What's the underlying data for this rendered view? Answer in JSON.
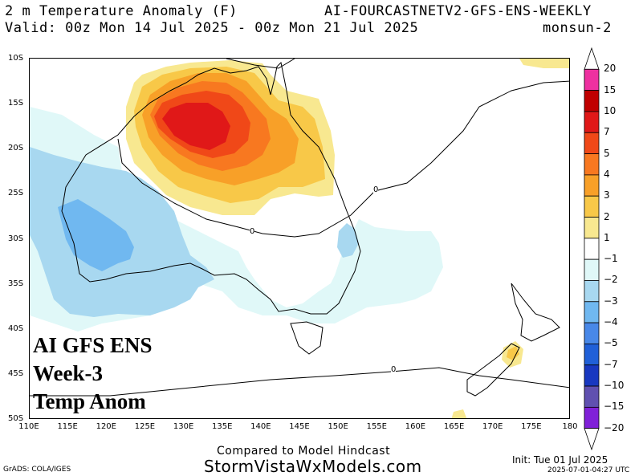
{
  "header": {
    "title_left": "2 m Temperature Anomaly (F)",
    "title_right": "AI-FOURCASTNETV2-GFS-ENS-WEEKLY",
    "valid": "Valid: 00z Mon 14 Jul 2025 - 00z Mon 21 Jul 2025",
    "run": "monsun-2"
  },
  "axes": {
    "lat_labels": [
      "10S",
      "15S",
      "20S",
      "25S",
      "30S",
      "35S",
      "40S",
      "45S",
      "50S"
    ],
    "lon_labels": [
      "110E",
      "115E",
      "120E",
      "125E",
      "130E",
      "135E",
      "140E",
      "145E",
      "150E",
      "155E",
      "160E",
      "165E",
      "170E",
      "175E",
      "180"
    ]
  },
  "overlay": {
    "line1": "AI GFS ENS",
    "line2": "Week-3",
    "line3": "Temp Anom"
  },
  "contour_labels": {
    "zero": "0"
  },
  "colorbar": {
    "labels": [
      "20",
      "15",
      "10",
      "7",
      "5",
      "4",
      "3",
      "2",
      "1",
      "−1",
      "−2",
      "−3",
      "−4",
      "−5",
      "−7",
      "−10",
      "−15",
      "−20"
    ],
    "colors": [
      "#ffffff",
      "#ee30a0",
      "#c00000",
      "#e01818",
      "#f04818",
      "#f87820",
      "#f8a028",
      "#f8c848",
      "#f8e890",
      "#ffffff",
      "#e0f8f8",
      "#a8d8f0",
      "#70b8f0",
      "#4888e8",
      "#2060d8",
      "#1838c0",
      "#6050b0",
      "#8020d8",
      "#ffffff"
    ]
  },
  "footer": {
    "compared": "Compared to Model Hindcast",
    "site": "StormVistaWxModels.com",
    "grads": "GrADS: COLA/IGES",
    "init": "Init: Tue 01 Jul 2025",
    "timestamp": "2025-07-01-04:27 UTC"
  }
}
